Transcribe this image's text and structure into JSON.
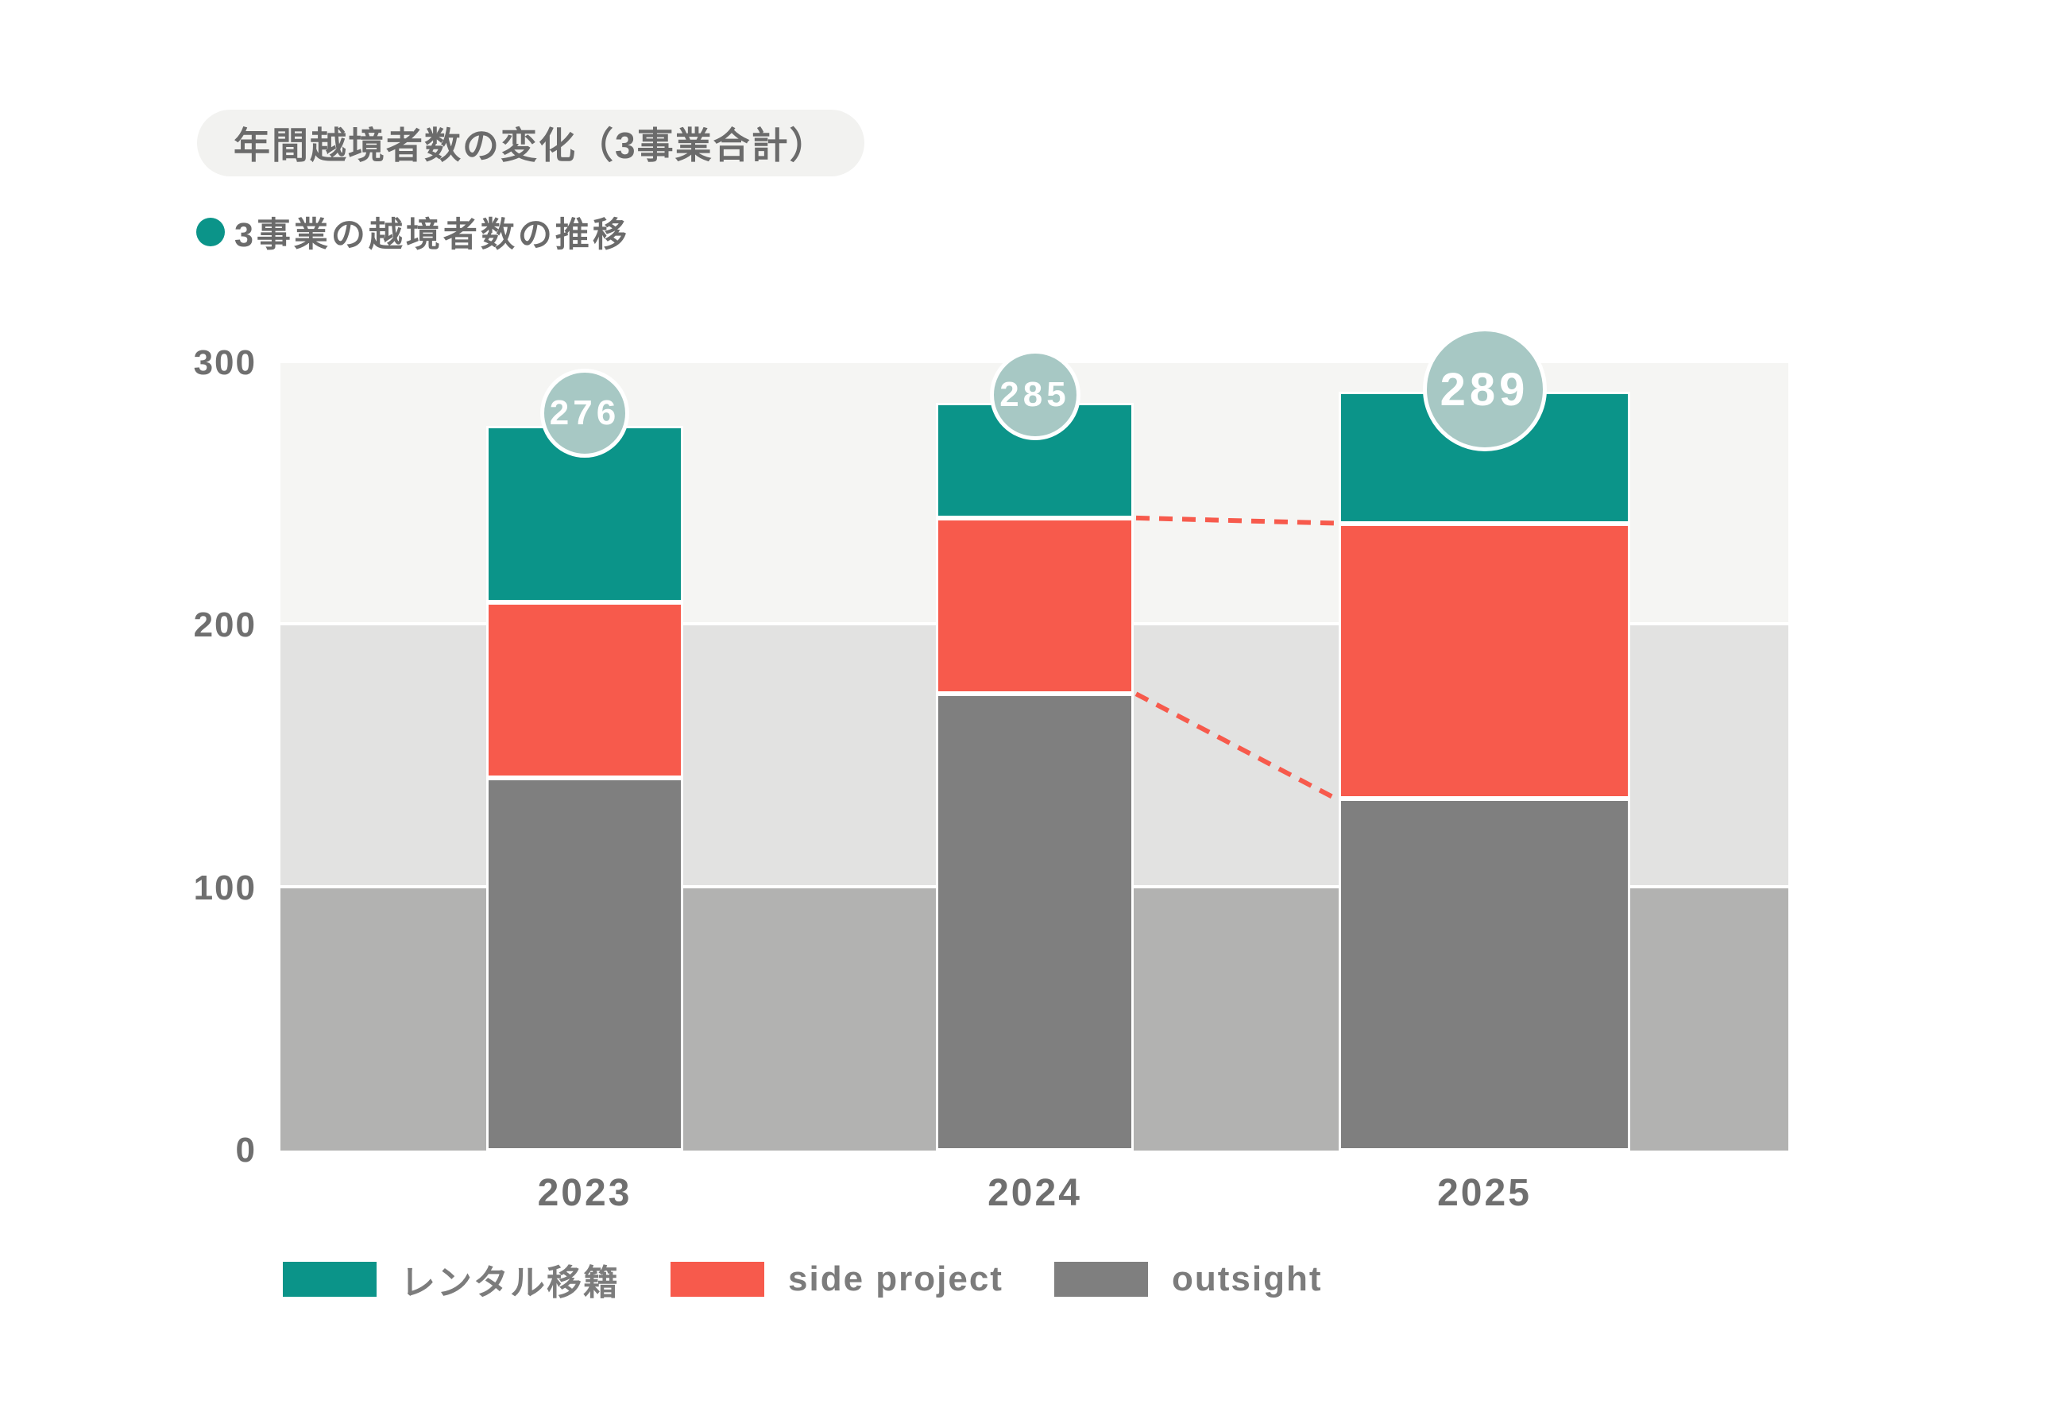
{
  "header": {
    "title": "年間越境者数の変化（3事業合計）",
    "subtitle": "3事業の越境者数の推移"
  },
  "chart_data": {
    "type": "bar",
    "stacked": true,
    "title": "年間越境者数の変化（3事業合計）",
    "subtitle": "3事業の越境者数の推移",
    "categories": [
      "2023",
      "2024",
      "2025"
    ],
    "series": [
      {
        "name": "レンタル移籍",
        "color": "#0b9489",
        "values": [
          67,
          44,
          50
        ]
      },
      {
        "name": "side project",
        "color": "#f75a4c",
        "values": [
          67,
          67,
          105
        ]
      },
      {
        "name": "outsight",
        "color": "#7f7f7f",
        "values": [
          142,
          174,
          134
        ]
      }
    ],
    "totals": [
      276,
      285,
      289
    ],
    "ylim": [
      0,
      300
    ],
    "yticks": [
      0,
      100,
      200,
      300
    ],
    "band_colors": [
      "#b2b2b1",
      "#e2e2e1",
      "#f5f5f3"
    ],
    "badge_color": "#a7c8c4",
    "badge_text_color": "#ffffff",
    "connector_color": "#f75a4c",
    "connectors_between": [
      1,
      2
    ],
    "legend_position": "bottom",
    "grid": "banded"
  }
}
